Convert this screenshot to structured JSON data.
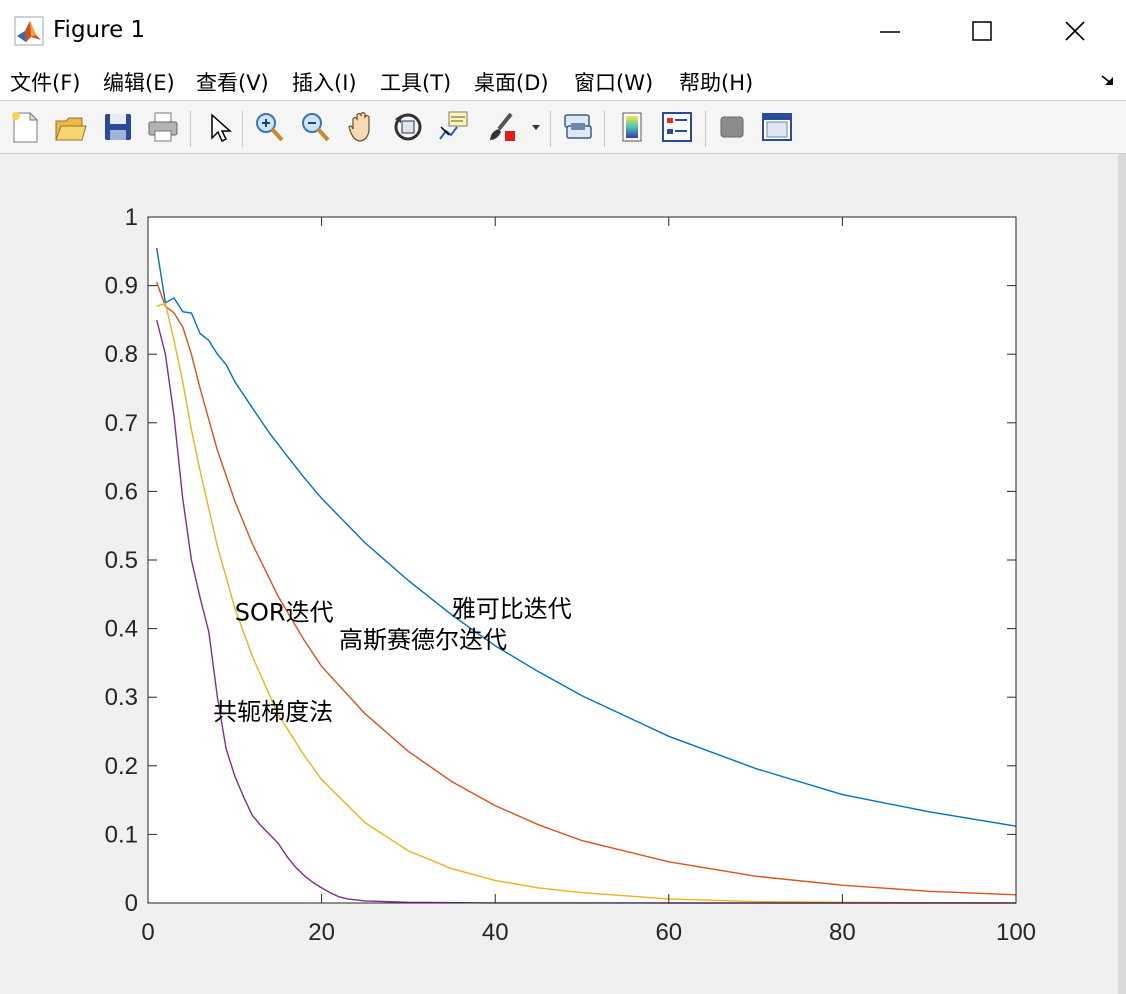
{
  "window": {
    "title": "Figure 1"
  },
  "menu": {
    "items": [
      "文件(F)",
      "编辑(E)",
      "查看(V)",
      "插入(I)",
      "工具(T)",
      "桌面(D)",
      "窗口(W)",
      "帮助(H)"
    ]
  },
  "toolbar": {
    "icons": [
      "new-figure-icon",
      "open-file-icon",
      "save-icon",
      "print-icon",
      "pointer-icon",
      "zoom-in-icon",
      "zoom-out-icon",
      "pan-hand-icon",
      "rotate-3d-icon",
      "data-cursor-icon",
      "brush-icon",
      "link-plot-icon",
      "colorbar-icon",
      "legend-icon",
      "hide-plot-tools-icon",
      "show-plot-tools-icon"
    ]
  },
  "colors": {
    "jacobi": "#0072bd",
    "gauss_seidel": "#d95319",
    "sor": "#edb120",
    "conjugate_gradient": "#7e2f8e"
  },
  "chart_data": {
    "type": "line",
    "title": "",
    "xlabel": "",
    "ylabel": "",
    "xlim": [
      0,
      100
    ],
    "ylim": [
      0,
      1
    ],
    "xticks": [
      "0",
      "20",
      "40",
      "60",
      "80",
      "100"
    ],
    "yticks": [
      "0",
      "0.1",
      "0.2",
      "0.3",
      "0.4",
      "0.5",
      "0.6",
      "0.7",
      "0.8",
      "0.9",
      "1"
    ],
    "grid": false,
    "legend": "none",
    "series": [
      {
        "x": [
          1,
          2,
          3,
          4,
          5,
          6,
          7,
          8,
          9,
          10,
          12,
          14,
          16,
          18,
          20,
          25,
          30,
          35,
          40,
          45,
          50,
          60,
          70,
          80,
          90,
          100
        ],
        "y": [
          0.955,
          0.875,
          0.882,
          0.862,
          0.86,
          0.83,
          0.82,
          0.8,
          0.785,
          0.76,
          0.722,
          0.685,
          0.652,
          0.62,
          0.59,
          0.525,
          0.47,
          0.42,
          0.375,
          0.337,
          0.302,
          0.243,
          0.196,
          0.158,
          0.133,
          0.112
        ]
      },
      {
        "x": [
          1,
          2,
          3,
          4,
          5,
          6,
          8,
          10,
          12,
          15,
          18,
          20,
          25,
          30,
          35,
          40,
          45,
          50,
          60,
          70,
          80,
          90,
          100
        ],
        "y": [
          0.905,
          0.87,
          0.86,
          0.84,
          0.8,
          0.75,
          0.66,
          0.586,
          0.524,
          0.447,
          0.383,
          0.345,
          0.276,
          0.221,
          0.177,
          0.142,
          0.114,
          0.091,
          0.06,
          0.039,
          0.026,
          0.017,
          0.012
        ]
      },
      {
        "x": [
          1,
          2,
          3,
          4,
          5,
          6,
          7,
          8,
          10,
          12,
          15,
          18,
          20,
          25,
          30,
          35,
          40,
          45,
          50,
          60,
          70,
          80,
          90,
          100
        ],
        "y": [
          0.87,
          0.874,
          0.82,
          0.76,
          0.69,
          0.63,
          0.575,
          0.52,
          0.43,
          0.36,
          0.275,
          0.215,
          0.18,
          0.117,
          0.076,
          0.05,
          0.033,
          0.022,
          0.015,
          0.006,
          0.002,
          0.001,
          0.0005,
          0.0002
        ]
      },
      {
        "x": [
          1,
          2,
          3,
          4,
          5,
          6,
          7,
          8,
          9,
          10,
          11,
          12,
          13,
          14,
          15,
          16,
          17,
          18,
          19,
          20,
          21,
          22,
          23,
          25,
          30,
          40,
          60,
          80,
          100
        ],
        "y": [
          0.85,
          0.8,
          0.71,
          0.59,
          0.5,
          0.445,
          0.395,
          0.3,
          0.225,
          0.185,
          0.155,
          0.128,
          0.113,
          0.1,
          0.087,
          0.068,
          0.052,
          0.04,
          0.03,
          0.022,
          0.015,
          0.009,
          0.006,
          0.003,
          0.001,
          0.0002,
          0,
          0,
          0
        ]
      }
    ],
    "annotations": [
      {
        "text": "SOR迭代",
        "x": 10,
        "y": 0.425
      },
      {
        "text": "雅可比迭代",
        "x": 35,
        "y": 0.43
      },
      {
        "text": "高斯赛德尔迭代",
        "x": 22,
        "y": 0.385
      },
      {
        "text": "共轭梯度法",
        "x": 7.5,
        "y": 0.28
      }
    ]
  }
}
